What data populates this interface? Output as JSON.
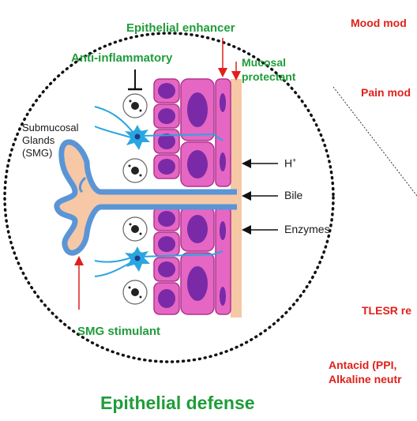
{
  "labels": {
    "epithelial_enhancer": "Epithelial enhancer",
    "anti_inflammatory": "Anti-inflammatory",
    "mucosal_protectant_line1": "Mucosal",
    "mucosal_protectant_line2": "protectant",
    "submucosal_line1": "Submucosal",
    "submucosal_line2": "Glands",
    "submucosal_line3": "(SMG)",
    "h_plus": "H",
    "h_plus_sup": "+",
    "bile": "Bile",
    "enzymes": "Enzymes",
    "smg_stimulant": "SMG stimulant",
    "epithelial_defense": "Epithelial defense"
  },
  "right_labels": {
    "mood": "Mood mod",
    "pain": "Pain mod",
    "tlesr": "TLESR re",
    "antacid_line1": "Antacid (PPI,",
    "antacid_line2": "Alkaline neutr"
  },
  "colors": {
    "green": "#1f9d3a",
    "red": "#e0201b",
    "cell_pink": "#e567c3",
    "nucleus_purple": "#7a2aa6",
    "gland_blue": "#5a95d6",
    "mucus_peach": "#f6c8a6",
    "nerve_blue": "#29a6e0"
  }
}
